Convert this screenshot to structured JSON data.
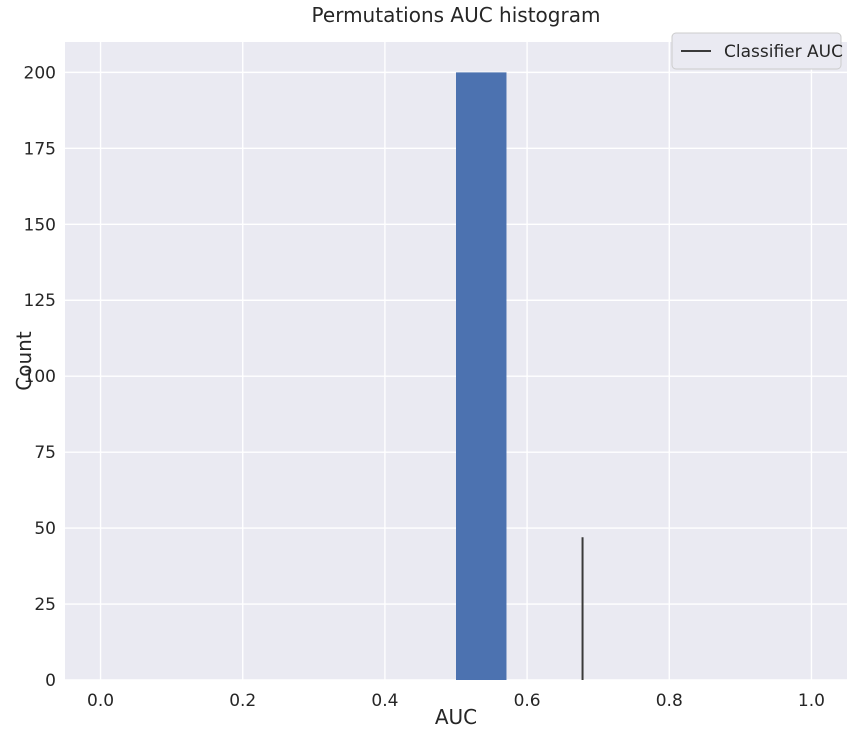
{
  "chart_data": {
    "type": "bar",
    "title": "Permutations AUC histogram",
    "xlabel": "AUC",
    "ylabel": "Count",
    "xlim": [
      -0.05,
      1.05
    ],
    "ylim": [
      0,
      210
    ],
    "xticks": [
      "0.0",
      "0.2",
      "0.4",
      "0.6",
      "0.8",
      "1.0"
    ],
    "xtick_values": [
      0.0,
      0.2,
      0.4,
      0.6,
      0.8,
      1.0
    ],
    "yticks": [
      "0",
      "25",
      "50",
      "75",
      "100",
      "125",
      "150",
      "175",
      "200"
    ],
    "ytick_values": [
      0,
      25,
      50,
      75,
      100,
      125,
      150,
      175,
      200
    ],
    "grid": true,
    "bins": [
      {
        "x_start": 0.5,
        "x_end": 0.571,
        "count": 200
      }
    ],
    "classifier_auc": {
      "x": 0.678,
      "y_max": 47
    },
    "legend": {
      "position": "top-right",
      "entries": [
        "Classifier AUC"
      ]
    },
    "colors": {
      "background": "#eaeaf2",
      "grid": "#ffffff",
      "bar": "#4c72b0",
      "vline": "#3a3a3a"
    }
  }
}
